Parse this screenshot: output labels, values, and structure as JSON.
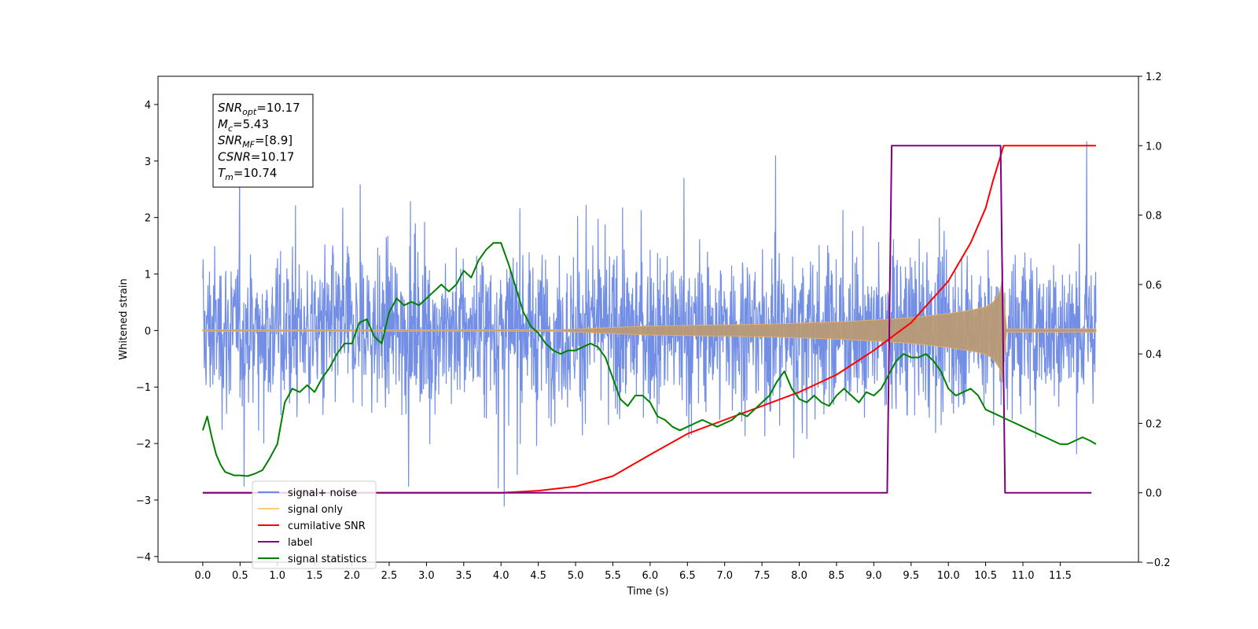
{
  "chart_data": {
    "type": "line",
    "xlabel": "Time (s)",
    "ylabel": "Whitened strain",
    "xlim": [
      -0.6,
      12.55
    ],
    "ylim": [
      -4.1,
      4.5
    ],
    "y2lim": [
      -0.2,
      1.2
    ],
    "grid": false,
    "xticks": [
      "0.0",
      "0.5",
      "1.0",
      "1.5",
      "2.0",
      "2.5",
      "3.0",
      "3.5",
      "4.0",
      "4.5",
      "5.0",
      "5.5",
      "6.0",
      "6.5",
      "7.0",
      "7.5",
      "8.0",
      "8.5",
      "9.0",
      "9.5",
      "10.0",
      "10.5",
      "11.0",
      "11.5"
    ],
    "xtick_values": [
      0.0,
      0.5,
      1.0,
      1.5,
      2.0,
      2.5,
      3.0,
      3.5,
      4.0,
      4.5,
      5.0,
      5.5,
      6.0,
      6.5,
      7.0,
      7.5,
      8.0,
      8.5,
      9.0,
      9.5,
      10.0,
      10.5,
      11.0,
      11.5
    ],
    "yticks": [
      "−4",
      "−3",
      "−2",
      "−1",
      "0",
      "1",
      "2",
      "3",
      "4"
    ],
    "ytick_values": [
      -4,
      -3,
      -2,
      -1,
      0,
      1,
      2,
      3,
      4
    ],
    "y2ticks": [
      "−0.2",
      "0.0",
      "0.2",
      "0.4",
      "0.6",
      "0.8",
      "1.0",
      "1.2"
    ],
    "y2tick_values": [
      -0.2,
      0.0,
      0.2,
      0.4,
      0.6,
      0.8,
      1.0,
      1.2
    ],
    "info_box": [
      {
        "base": "SNR",
        "sub": "opt",
        "rest": "=10.17"
      },
      {
        "base": "M",
        "sub": "c",
        "rest": "=5.43"
      },
      {
        "base": "SNR",
        "sub": "MF",
        "rest": "=[8.9]"
      },
      {
        "base": "CSNR",
        "sub": "",
        "rest": "=10.17"
      },
      {
        "base": "T",
        "sub": "m",
        "rest": "=10.74"
      }
    ],
    "legend": {
      "placement": "lower-left",
      "entries": [
        {
          "label": "signal+ noise",
          "color": "#6a88e4"
        },
        {
          "label": "signal only",
          "color": "#ffc97a"
        },
        {
          "label": "cumilative SNR",
          "color": "#ff0000"
        },
        {
          "label": "label",
          "color": "#800080"
        },
        {
          "label": "signal statistics",
          "color": "#008000"
        }
      ]
    },
    "series": [
      {
        "name": "signal+ noise",
        "axis": "left",
        "color": "#6a88e4",
        "description": "whitened noise, approx range -3.7 to 3.9, dense from t=0.0 to 11.98 s",
        "t_start": 0.0,
        "t_end": 11.98,
        "amplitude_range": [
          -3.7,
          3.95
        ]
      },
      {
        "name": "signal only",
        "axis": "left",
        "color": "#ffc97a",
        "description": "chirp envelope growing toward merger",
        "envelope": {
          "t": [
            0.0,
            4.5,
            6.0,
            7.5,
            8.5,
            9.2,
            9.6,
            10.0,
            10.3,
            10.5,
            10.6,
            10.7,
            10.74,
            10.76,
            11.98
          ],
          "amp": [
            0.0,
            0.0,
            0.08,
            0.11,
            0.15,
            0.2,
            0.24,
            0.3,
            0.36,
            0.42,
            0.5,
            0.7,
            1.1,
            0.03,
            0.03
          ]
        }
      },
      {
        "name": "cumilative SNR",
        "axis": "right",
        "color": "#ff0000",
        "x": [
          0.0,
          4.0,
          4.5,
          5.0,
          5.5,
          6.0,
          6.5,
          7.0,
          7.5,
          8.0,
          8.5,
          9.0,
          9.5,
          10.0,
          10.3,
          10.5,
          10.6,
          10.7,
          10.74,
          11.0,
          11.5,
          11.98
        ],
        "y": [
          0.0,
          0.0,
          0.006,
          0.018,
          0.048,
          0.11,
          0.17,
          0.21,
          0.25,
          0.29,
          0.34,
          0.41,
          0.49,
          0.61,
          0.72,
          0.82,
          0.9,
          0.97,
          1.0,
          1.0,
          1.0,
          1.0
        ]
      },
      {
        "name": "label",
        "axis": "right",
        "color": "#800080",
        "x": [
          0.0,
          9.18,
          9.24,
          10.7,
          10.76,
          11.92
        ],
        "y": [
          0.0,
          0.0,
          1.0,
          1.0,
          0.0,
          0.0
        ]
      },
      {
        "name": "signal statistics",
        "axis": "right",
        "color": "#008000",
        "x": [
          0.0,
          0.06,
          0.12,
          0.18,
          0.24,
          0.3,
          0.42,
          0.5,
          0.6,
          0.7,
          0.8,
          0.9,
          0.95,
          1.0,
          1.1,
          1.2,
          1.3,
          1.4,
          1.5,
          1.6,
          1.7,
          1.8,
          1.9,
          2.0,
          2.1,
          2.2,
          2.3,
          2.4,
          2.5,
          2.6,
          2.7,
          2.8,
          2.9,
          3.0,
          3.1,
          3.2,
          3.3,
          3.4,
          3.5,
          3.6,
          3.7,
          3.8,
          3.9,
          4.0,
          4.1,
          4.2,
          4.3,
          4.4,
          4.5,
          4.6,
          4.7,
          4.8,
          4.9,
          5.0,
          5.1,
          5.2,
          5.3,
          5.4,
          5.5,
          5.6,
          5.7,
          5.8,
          5.9,
          6.0,
          6.1,
          6.2,
          6.3,
          6.4,
          6.5,
          6.6,
          6.7,
          6.8,
          6.9,
          7.0,
          7.1,
          7.2,
          7.3,
          7.4,
          7.5,
          7.6,
          7.7,
          7.8,
          7.9,
          8.0,
          8.1,
          8.2,
          8.3,
          8.4,
          8.5,
          8.6,
          8.7,
          8.8,
          8.9,
          9.0,
          9.1,
          9.2,
          9.3,
          9.4,
          9.5,
          9.6,
          9.7,
          9.8,
          9.9,
          10.0,
          10.1,
          10.2,
          10.3,
          10.4,
          10.5,
          10.6,
          10.7,
          10.8,
          10.9,
          11.0,
          11.1,
          11.2,
          11.3,
          11.4,
          11.5,
          11.6,
          11.7,
          11.8,
          11.9,
          11.98
        ],
        "y": [
          0.18,
          0.22,
          0.16,
          0.11,
          0.08,
          0.06,
          0.05,
          0.05,
          0.048,
          0.055,
          0.065,
          0.1,
          0.12,
          0.14,
          0.26,
          0.3,
          0.29,
          0.31,
          0.29,
          0.33,
          0.36,
          0.4,
          0.43,
          0.43,
          0.49,
          0.5,
          0.45,
          0.43,
          0.52,
          0.56,
          0.54,
          0.55,
          0.54,
          0.56,
          0.58,
          0.6,
          0.58,
          0.6,
          0.64,
          0.62,
          0.67,
          0.7,
          0.72,
          0.72,
          0.66,
          0.59,
          0.52,
          0.48,
          0.46,
          0.43,
          0.41,
          0.4,
          0.41,
          0.41,
          0.42,
          0.43,
          0.42,
          0.39,
          0.33,
          0.27,
          0.25,
          0.28,
          0.28,
          0.26,
          0.22,
          0.21,
          0.19,
          0.18,
          0.19,
          0.2,
          0.21,
          0.2,
          0.19,
          0.2,
          0.21,
          0.23,
          0.22,
          0.24,
          0.26,
          0.28,
          0.32,
          0.35,
          0.3,
          0.27,
          0.26,
          0.28,
          0.26,
          0.25,
          0.28,
          0.3,
          0.28,
          0.26,
          0.29,
          0.28,
          0.3,
          0.34,
          0.38,
          0.4,
          0.39,
          0.39,
          0.4,
          0.38,
          0.35,
          0.3,
          0.28,
          0.29,
          0.3,
          0.28,
          0.24,
          0.23,
          0.22,
          0.21,
          0.2,
          0.19,
          0.18,
          0.17,
          0.16,
          0.15,
          0.14,
          0.14,
          0.15,
          0.16,
          0.15,
          0.14
        ]
      }
    ]
  }
}
